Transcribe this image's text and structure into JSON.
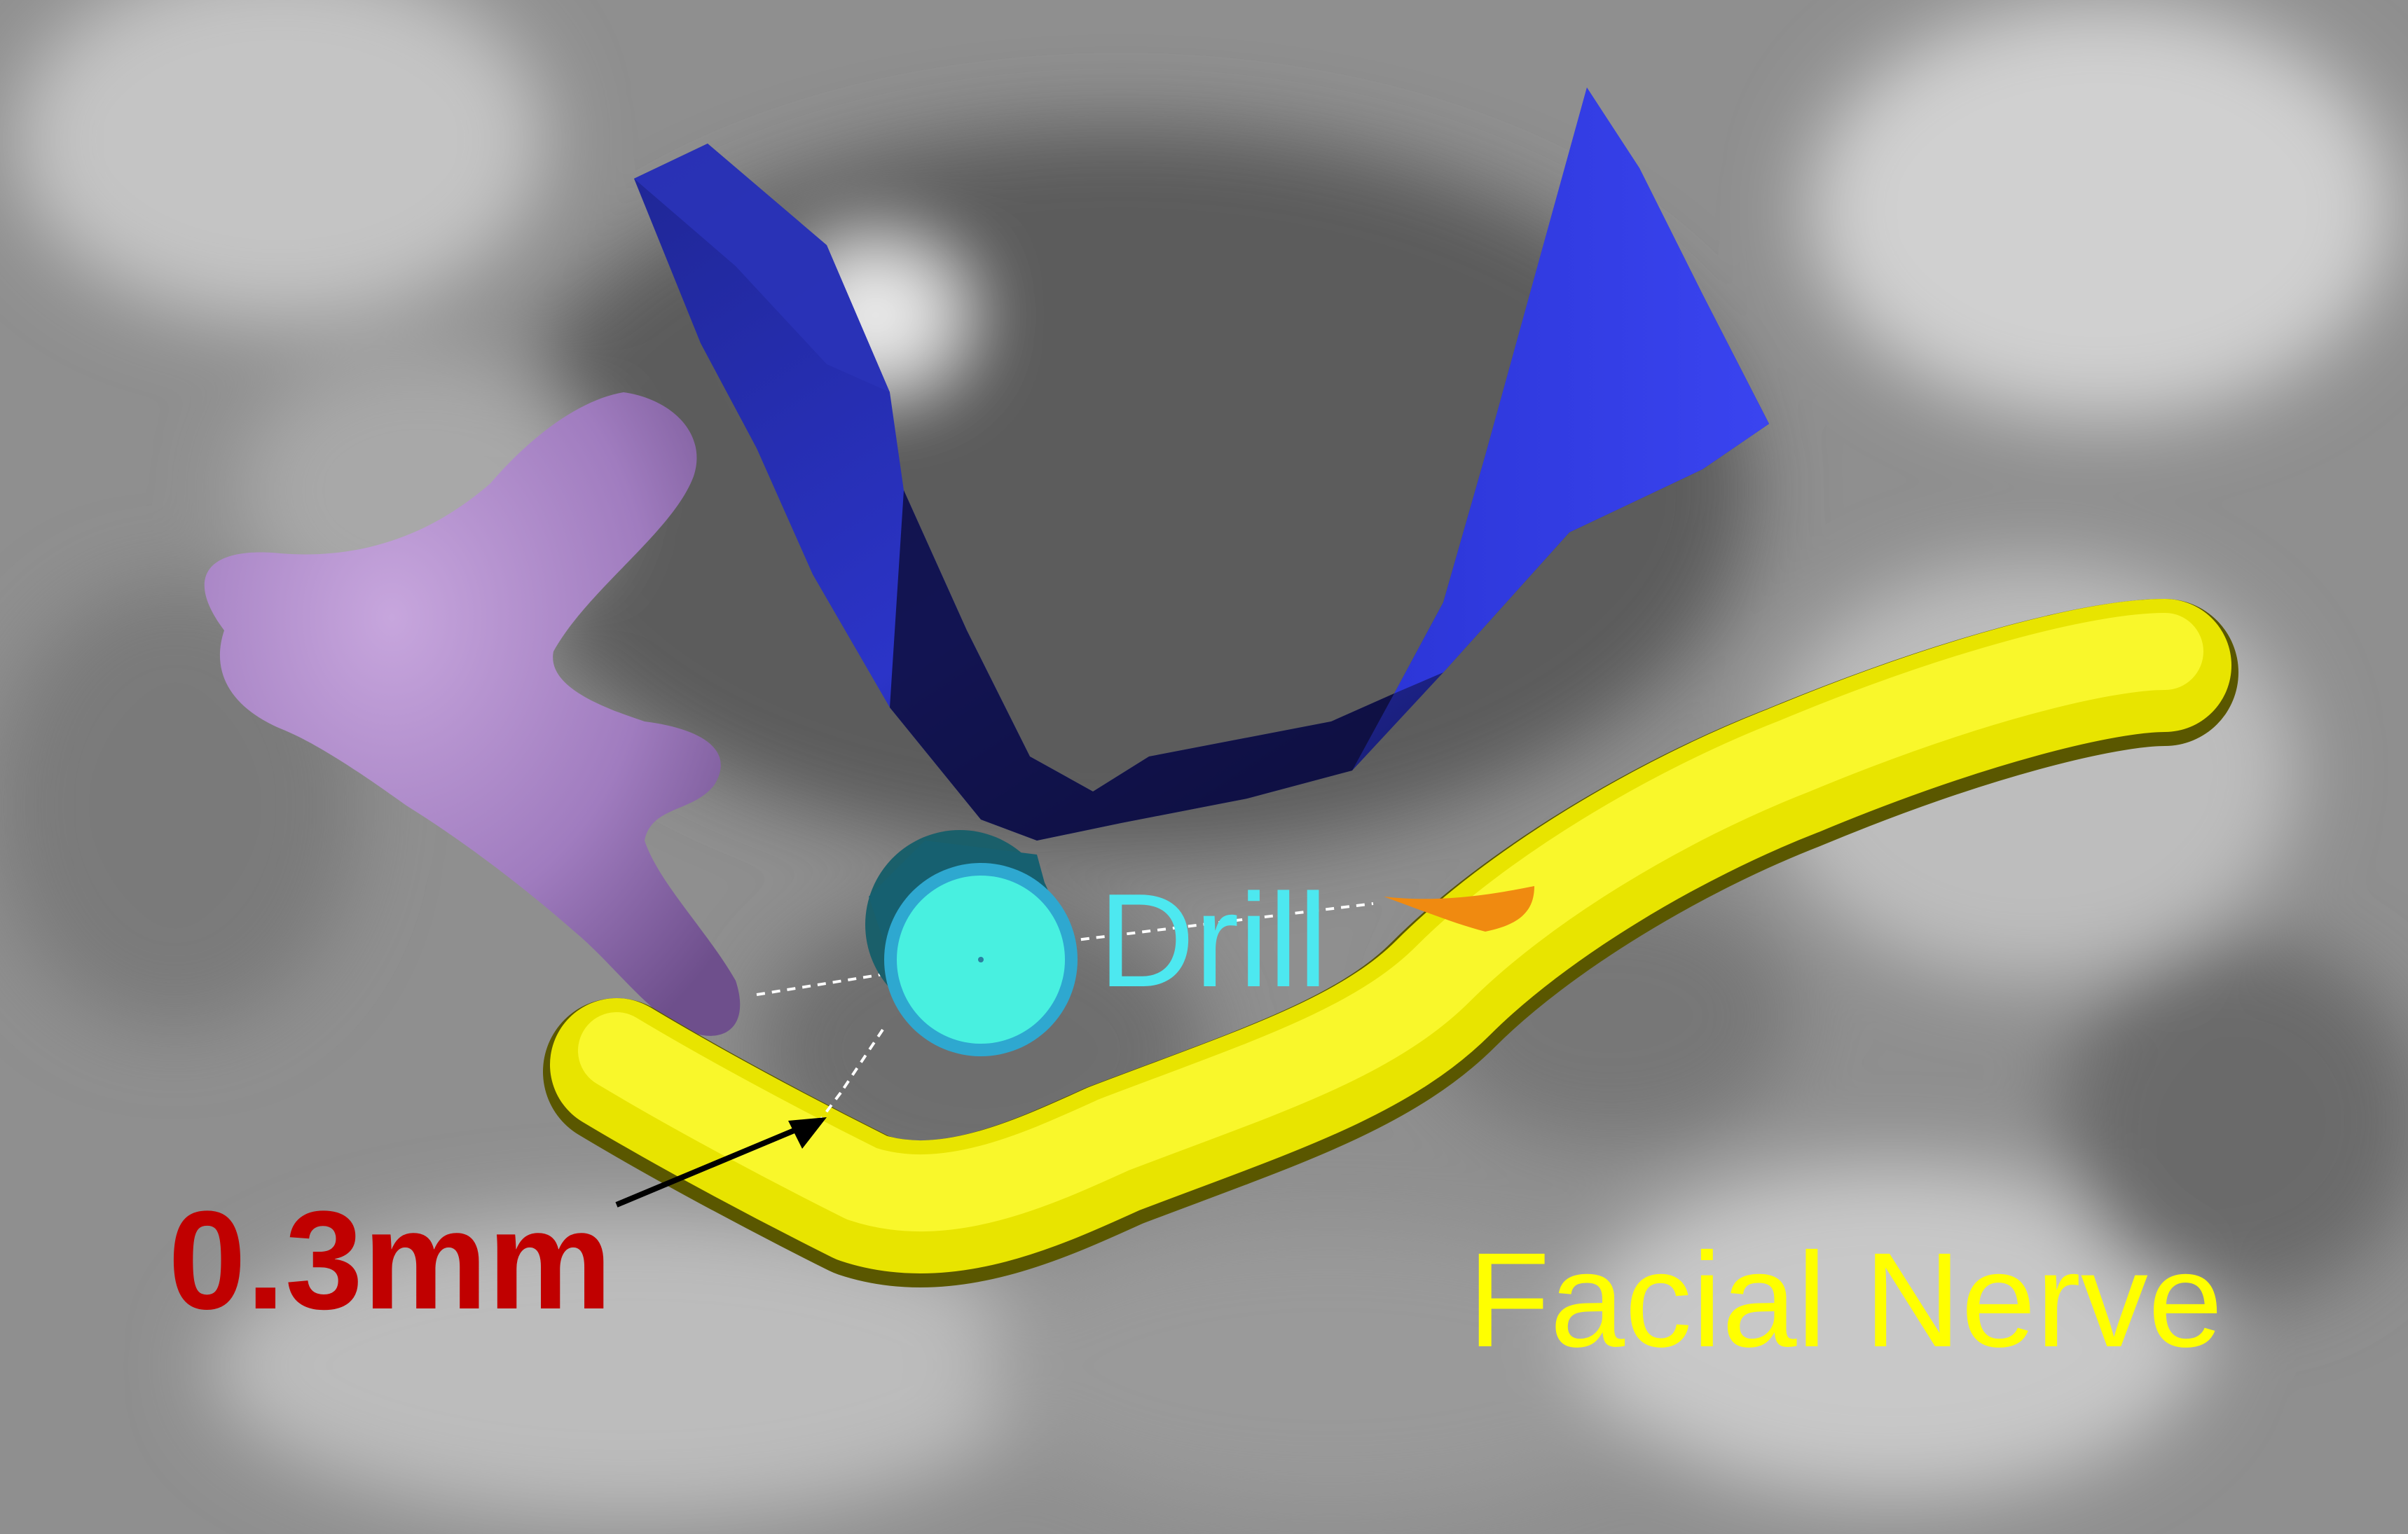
{
  "labels": {
    "drill": "Drill",
    "facial_nerve": "Facial Nerve",
    "distance": "0.3mm"
  },
  "colors": {
    "drill_label": "#4de8f0",
    "facial_nerve_label": "#ffff00",
    "distance_label": "#c00000",
    "facial_nerve": "#f2ee00",
    "drill_cylinder": "#45e6e0",
    "blue_structure": "#2a2fbf",
    "purple_structure": "#a37bbf",
    "orange_marker": "#f08a10"
  },
  "objects": [
    {
      "name": "facial-nerve",
      "color": "#f2ee00"
    },
    {
      "name": "drill-cylinder",
      "color": "#45e6e0"
    },
    {
      "name": "blue-surface",
      "color": "#2a2fbf"
    },
    {
      "name": "purple-structure",
      "color": "#a37bbf"
    },
    {
      "name": "orange-marker",
      "color": "#f08a10"
    },
    {
      "name": "ct-background",
      "color": "#8a8a8a"
    }
  ]
}
